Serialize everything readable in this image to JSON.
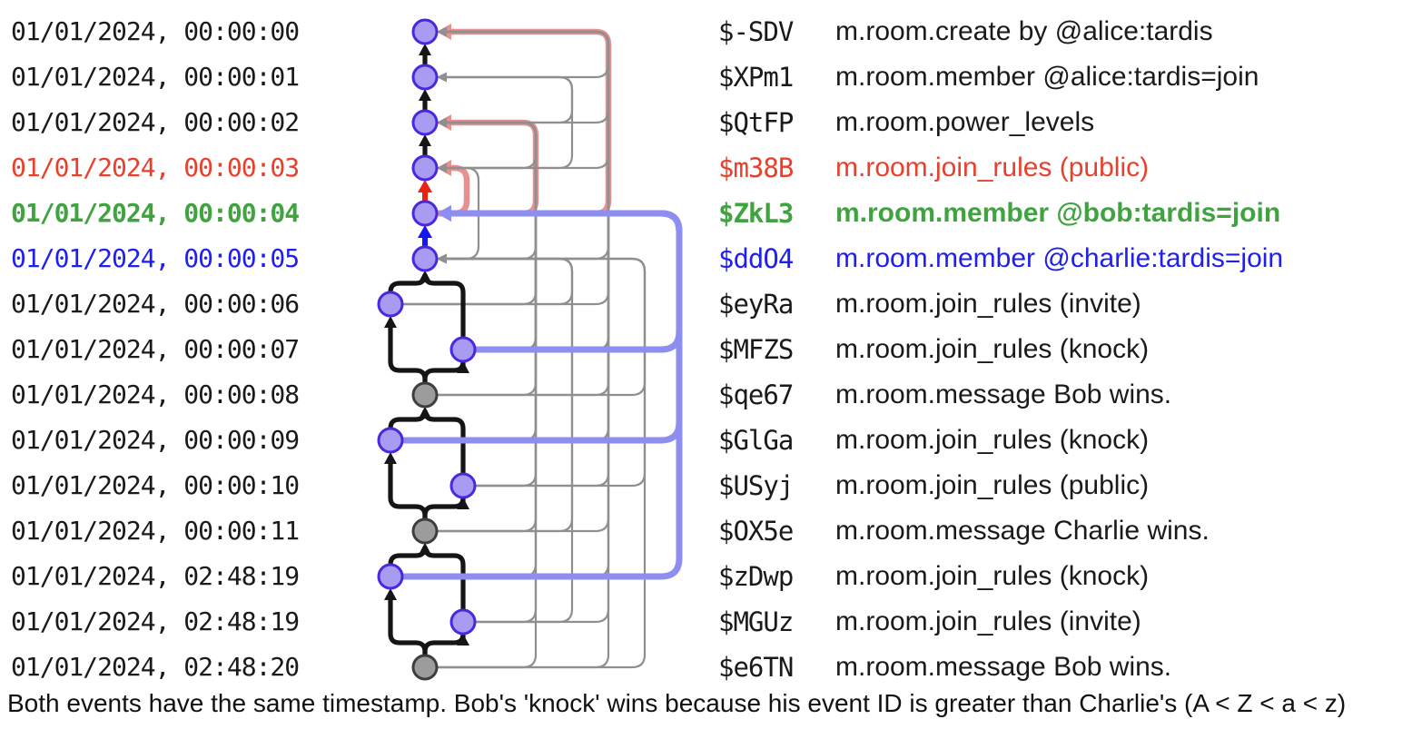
{
  "caption": "Both events have the same timestamp. Bob's 'knock' wins because his event ID is greater than Charlie's (A < Z < a < z)",
  "colors": {
    "node_state_fill": "#a89bf2",
    "node_state_border": "#4a28e0",
    "node_message_fill": "#9c9c9c",
    "node_message_border": "#3e3e3e",
    "prev_edge": "#151515",
    "auth_edge": "#8f8f8f",
    "highlight_red_edge": "#ee2211",
    "highlight_blue_edge": "#1616f0",
    "auth_pink_edge": "#e89090",
    "auth_lavender_edge": "#8e8ef0",
    "text_red": "#e8402c",
    "text_green": "#3fa33f",
    "text_blue": "#2020ee"
  },
  "events": [
    {
      "ts": "01/01/2024, 00:00:00",
      "id": "$-SDV",
      "label": "m.room.create by @alice:tardis",
      "tone": "black",
      "col": "C",
      "kind": "state"
    },
    {
      "ts": "01/01/2024, 00:00:01",
      "id": "$XPm1",
      "label": "m.room.member @alice:tardis=join",
      "tone": "black",
      "col": "C",
      "kind": "state"
    },
    {
      "ts": "01/01/2024, 00:00:02",
      "id": "$QtFP",
      "label": "m.room.power_levels",
      "tone": "black",
      "col": "C",
      "kind": "state"
    },
    {
      "ts": "01/01/2024, 00:00:03",
      "id": "$m38B",
      "label": "m.room.join_rules (public)",
      "tone": "red",
      "col": "C",
      "kind": "state"
    },
    {
      "ts": "01/01/2024, 00:00:04",
      "id": "$ZkL3",
      "label": "m.room.member @bob:tardis=join",
      "tone": "green",
      "col": "C",
      "kind": "state"
    },
    {
      "ts": "01/01/2024, 00:00:05",
      "id": "$ddO4",
      "label": "m.room.member @charlie:tardis=join",
      "tone": "blue",
      "col": "C",
      "kind": "state"
    },
    {
      "ts": "01/01/2024, 00:00:06",
      "id": "$eyRa",
      "label": "m.room.join_rules (invite)",
      "tone": "black",
      "col": "L",
      "kind": "state"
    },
    {
      "ts": "01/01/2024, 00:00:07",
      "id": "$MFZS",
      "label": "m.room.join_rules (knock)",
      "tone": "black",
      "col": "R",
      "kind": "state"
    },
    {
      "ts": "01/01/2024, 00:00:08",
      "id": "$qe67",
      "label": "m.room.message Bob wins.",
      "tone": "black",
      "col": "C",
      "kind": "message"
    },
    {
      "ts": "01/01/2024, 00:00:09",
      "id": "$GlGa",
      "label": "m.room.join_rules (knock)",
      "tone": "black",
      "col": "L",
      "kind": "state"
    },
    {
      "ts": "01/01/2024, 00:00:10",
      "id": "$USyj",
      "label": "m.room.join_rules (public)",
      "tone": "black",
      "col": "R",
      "kind": "state"
    },
    {
      "ts": "01/01/2024, 00:00:11",
      "id": "$OX5e",
      "label": "m.room.message Charlie wins.",
      "tone": "black",
      "col": "C",
      "kind": "message"
    },
    {
      "ts": "01/01/2024, 02:48:19",
      "id": "$zDwp",
      "label": "m.room.join_rules (knock)",
      "tone": "black",
      "col": "L",
      "kind": "state"
    },
    {
      "ts": "01/01/2024, 02:48:19",
      "id": "$MGUz",
      "label": "m.room.join_rules (invite)",
      "tone": "black",
      "col": "R",
      "kind": "state"
    },
    {
      "ts": "01/01/2024, 02:48:20",
      "id": "$e6TN",
      "label": "m.room.message Bob wins.",
      "tone": "black",
      "col": "C",
      "kind": "message"
    }
  ],
  "graph": {
    "prev_edges": [
      [
        2,
        1,
        "black"
      ],
      [
        3,
        2,
        "black"
      ],
      [
        4,
        3,
        "black"
      ],
      [
        5,
        4,
        "red"
      ],
      [
        6,
        5,
        "blue"
      ],
      [
        7,
        6,
        "black"
      ],
      [
        8,
        6,
        "black"
      ],
      [
        9,
        7,
        "black"
      ],
      [
        9,
        8,
        "black"
      ],
      [
        10,
        9,
        "black"
      ],
      [
        11,
        9,
        "black"
      ],
      [
        12,
        10,
        "black"
      ],
      [
        12,
        11,
        "black"
      ],
      [
        13,
        12,
        "black"
      ],
      [
        14,
        12,
        "black"
      ],
      [
        15,
        13,
        "black"
      ],
      [
        15,
        14,
        "black"
      ]
    ],
    "auth_edges": [
      [
        2,
        1,
        "gray"
      ],
      [
        3,
        1,
        "gray"
      ],
      [
        3,
        2,
        "gray"
      ],
      [
        4,
        1,
        "gray"
      ],
      [
        4,
        2,
        "gray"
      ],
      [
        4,
        3,
        "gray"
      ],
      [
        5,
        1,
        "pink"
      ],
      [
        5,
        3,
        "pink"
      ],
      [
        5,
        4,
        "pink"
      ],
      [
        6,
        1,
        "gray"
      ],
      [
        6,
        3,
        "gray"
      ],
      [
        6,
        4,
        "gray"
      ],
      [
        7,
        1,
        "gray"
      ],
      [
        7,
        3,
        "gray"
      ],
      [
        7,
        6,
        "gray"
      ],
      [
        8,
        1,
        "gray"
      ],
      [
        8,
        3,
        "gray"
      ],
      [
        8,
        5,
        "lavender"
      ],
      [
        9,
        1,
        "gray"
      ],
      [
        9,
        3,
        "gray"
      ],
      [
        9,
        6,
        "gray"
      ],
      [
        10,
        1,
        "gray"
      ],
      [
        10,
        3,
        "gray"
      ],
      [
        10,
        5,
        "lavender"
      ],
      [
        11,
        1,
        "gray"
      ],
      [
        11,
        3,
        "gray"
      ],
      [
        11,
        6,
        "gray"
      ],
      [
        12,
        1,
        "gray"
      ],
      [
        12,
        3,
        "gray"
      ],
      [
        12,
        6,
        "gray"
      ],
      [
        13,
        1,
        "gray"
      ],
      [
        13,
        3,
        "gray"
      ],
      [
        13,
        5,
        "lavender"
      ],
      [
        14,
        1,
        "gray"
      ],
      [
        14,
        3,
        "gray"
      ],
      [
        14,
        6,
        "gray"
      ],
      [
        15,
        1,
        "gray"
      ],
      [
        15,
        3,
        "gray"
      ],
      [
        15,
        6,
        "gray"
      ]
    ]
  }
}
